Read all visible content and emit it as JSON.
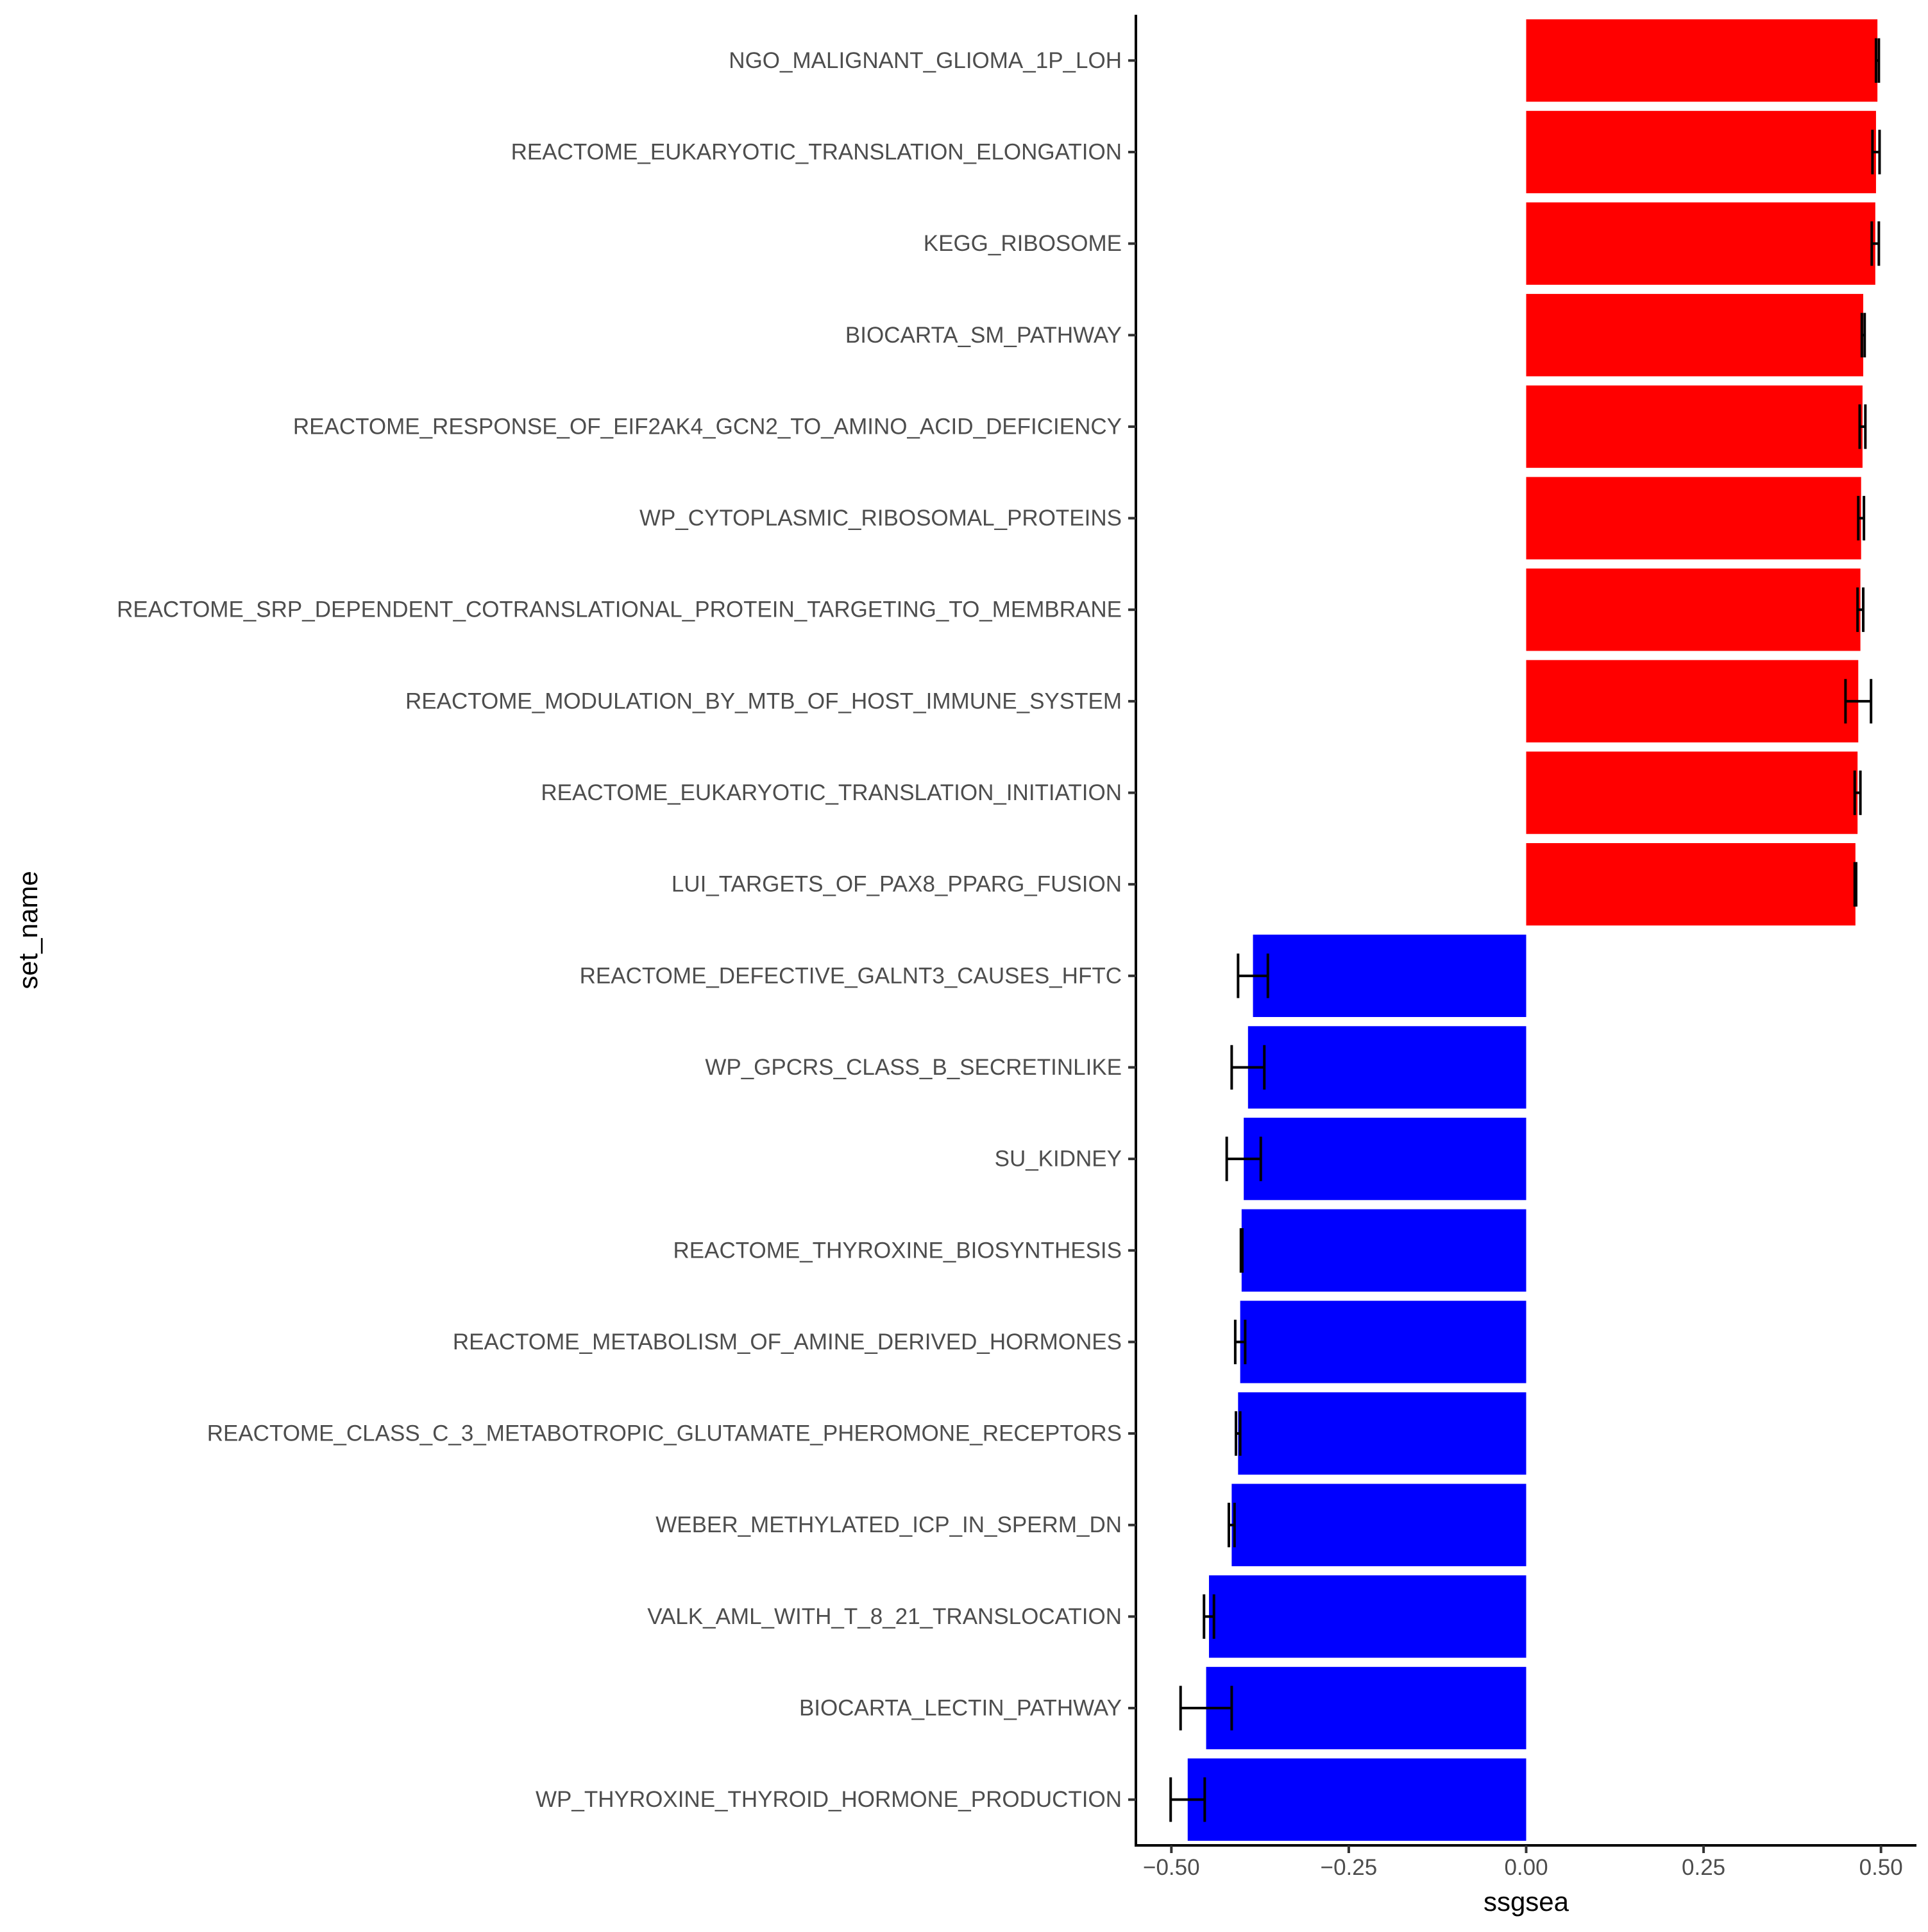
{
  "chart_data": {
    "type": "bar",
    "orientation": "horizontal",
    "xlabel": "ssgsea",
    "ylabel": "set_name",
    "xlim": [
      -0.55,
      0.55
    ],
    "xticks": [
      -0.5,
      -0.25,
      0.0,
      0.25,
      0.5
    ],
    "xtick_labels": [
      "−0.50",
      "−0.25",
      "0.00",
      "0.25",
      "0.50"
    ],
    "grid": false,
    "legend": "none",
    "colors": {
      "positive": "#ff0000",
      "negative": "#0000ff",
      "error_bar": "#000000"
    },
    "categories": [
      "NGO_MALIGNANT_GLIOMA_1P_LOH",
      "REACTOME_EUKARYOTIC_TRANSLATION_ELONGATION",
      "KEGG_RIBOSOME",
      "BIOCARTA_SM_PATHWAY",
      "REACTOME_RESPONSE_OF_EIF2AK4_GCN2_TO_AMINO_ACID_DEFICIENCY",
      "WP_CYTOPLASMIC_RIBOSOMAL_PROTEINS",
      "REACTOME_SRP_DEPENDENT_COTRANSLATIONAL_PROTEIN_TARGETING_TO_MEMBRANE",
      "REACTOME_MODULATION_BY_MTB_OF_HOST_IMMUNE_SYSTEM",
      "REACTOME_EUKARYOTIC_TRANSLATION_INITIATION",
      "LUI_TARGETS_OF_PAX8_PPARG_FUSION",
      "REACTOME_DEFECTIVE_GALNT3_CAUSES_HFTC",
      "WP_GPCRS_CLASS_B_SECRETINLIKE",
      "SU_KIDNEY",
      "REACTOME_THYROXINE_BIOSYNTHESIS",
      "REACTOME_METABOLISM_OF_AMINE_DERIVED_HORMONES",
      "REACTOME_CLASS_C_3_METABOTROPIC_GLUTAMATE_PHEROMONE_RECEPTORS",
      "WEBER_METHYLATED_ICP_IN_SPERM_DN",
      "VALK_AML_WITH_T_8_21_TRANSLOCATION",
      "BIOCARTA_LECTIN_PATHWAY",
      "WP_THYROXINE_THYROID_HORMONE_PRODUCTION"
    ],
    "values": [
      0.495,
      0.493,
      0.492,
      0.475,
      0.474,
      0.472,
      0.471,
      0.468,
      0.467,
      0.464,
      -0.385,
      -0.392,
      -0.398,
      -0.401,
      -0.403,
      -0.406,
      -0.415,
      -0.447,
      -0.451,
      -0.477
    ],
    "error_low": [
      0.493,
      0.488,
      0.487,
      0.473,
      0.47,
      0.468,
      0.467,
      0.45,
      0.463,
      0.463,
      -0.406,
      -0.415,
      -0.422,
      -0.402,
      -0.41,
      -0.409,
      -0.419,
      -0.454,
      -0.487,
      -0.501
    ],
    "error_high": [
      0.497,
      0.498,
      0.497,
      0.477,
      0.478,
      0.476,
      0.475,
      0.486,
      0.471,
      0.465,
      -0.364,
      -0.369,
      -0.374,
      -0.4,
      -0.396,
      -0.403,
      -0.411,
      -0.44,
      -0.415,
      -0.453
    ]
  }
}
